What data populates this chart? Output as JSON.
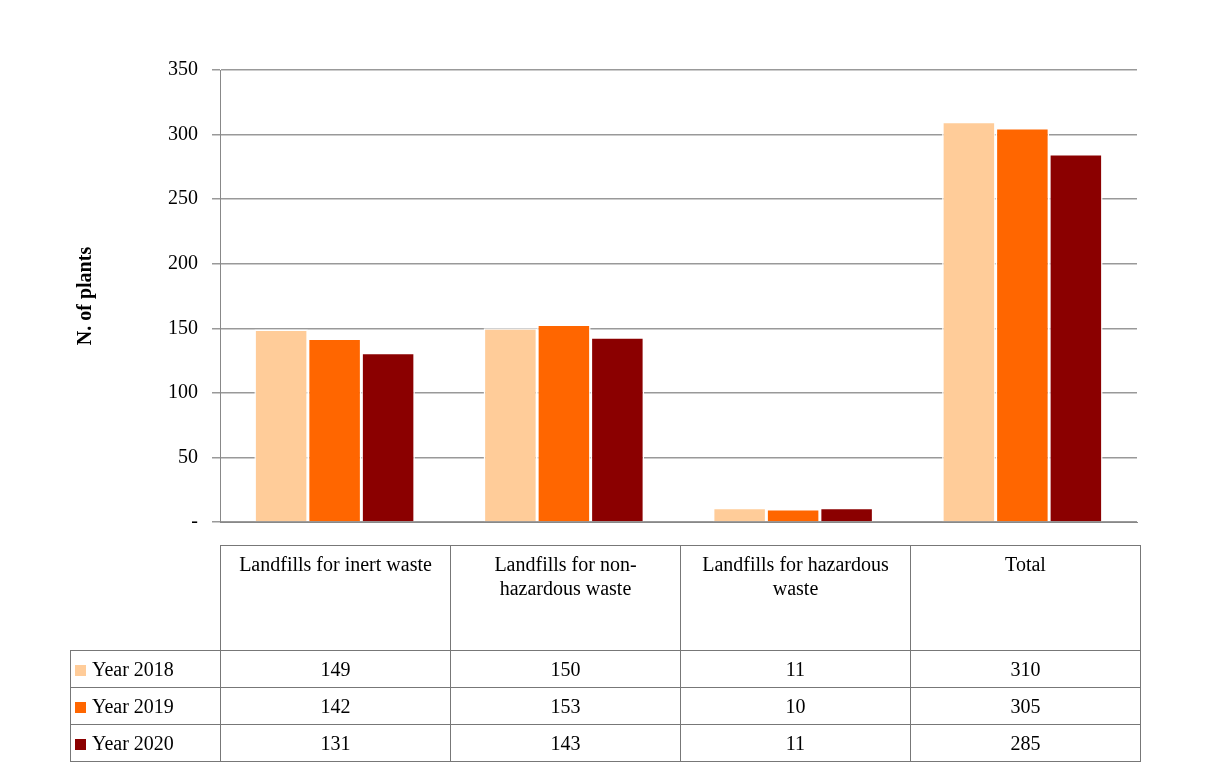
{
  "chart_data": {
    "type": "bar",
    "ylabel": "N. of plants",
    "categories": [
      "Landfills for inert waste",
      "Landfills for non-hazardous waste",
      "Landfills for hazardous waste",
      "Total"
    ],
    "series": [
      {
        "name": "Year 2018",
        "color": "#ffcc99",
        "values": [
          149,
          150,
          11,
          310
        ]
      },
      {
        "name": "Year 2019",
        "color": "#ff6600",
        "values": [
          142,
          153,
          10,
          305
        ]
      },
      {
        "name": "Year 2020",
        "color": "#8b0000",
        "values": [
          131,
          143,
          11,
          285
        ]
      }
    ],
    "ylim": [
      0,
      350
    ],
    "yticks": [
      {
        "value": 0,
        "label": "-"
      },
      50,
      100,
      150,
      200,
      250,
      300,
      350
    ],
    "grid": "y",
    "legend": "bottom left",
    "data_labels": true
  }
}
